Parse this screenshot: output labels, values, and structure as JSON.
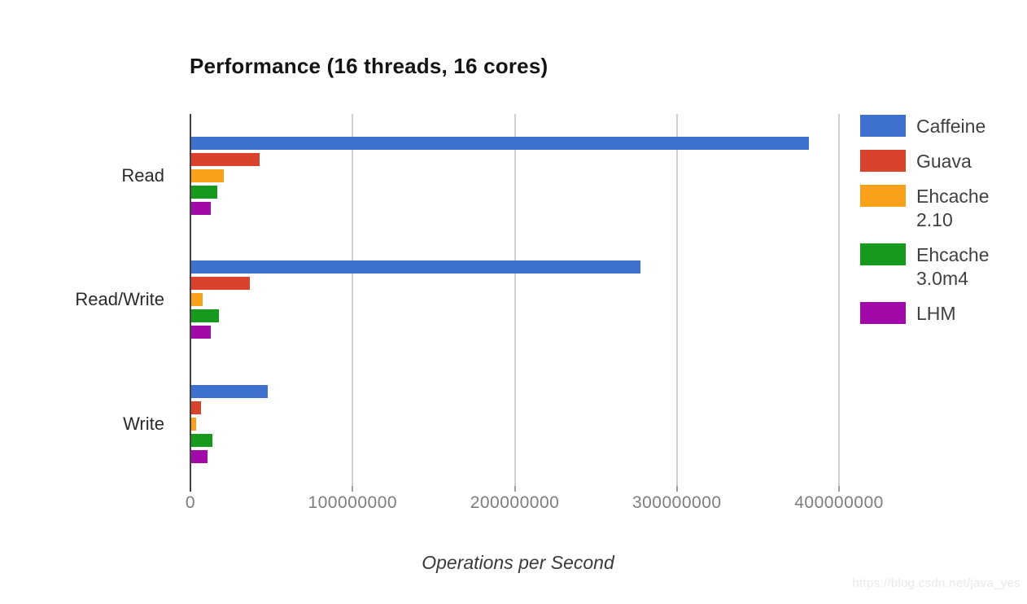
{
  "watermark": "https://blog.csdn.net/java_yes",
  "chart_data": {
    "type": "bar",
    "orientation": "horizontal",
    "title": "Performance (16 threads, 16 cores)",
    "xlabel": "Operations per Second",
    "ylabel": "",
    "categories": [
      "Read",
      "Read/Write",
      "Write"
    ],
    "series": [
      {
        "name": "Caffeine",
        "color": "#3e70d0",
        "values": [
          382000000,
          278000000,
          48000000
        ]
      },
      {
        "name": "Guava",
        "color": "#d9422b",
        "values": [
          43000000,
          37000000,
          7000000
        ]
      },
      {
        "name": "Ehcache 2.10",
        "color": "#f9a11b",
        "values": [
          21000000,
          8000000,
          4000000
        ]
      },
      {
        "name": "Ehcache 3.0m4",
        "color": "#159a1d",
        "values": [
          17000000,
          18000000,
          14000000
        ]
      },
      {
        "name": "LHM",
        "color": "#a109a9",
        "values": [
          13000000,
          13000000,
          11000000
        ]
      }
    ],
    "x_ticks": [
      0,
      100000000,
      200000000,
      300000000,
      400000000
    ],
    "x_tick_labels": [
      "0",
      "100000000",
      "200000000",
      "300000000",
      "400000000"
    ],
    "xlim": [
      0,
      405000000
    ],
    "grid": true,
    "legend_position": "right",
    "colors": {
      "gridline": "#d0d0d0",
      "axis": "#424242",
      "tick_label": "#7d7d7d",
      "category_label": "#2b2b2b",
      "title": "#141414"
    }
  }
}
